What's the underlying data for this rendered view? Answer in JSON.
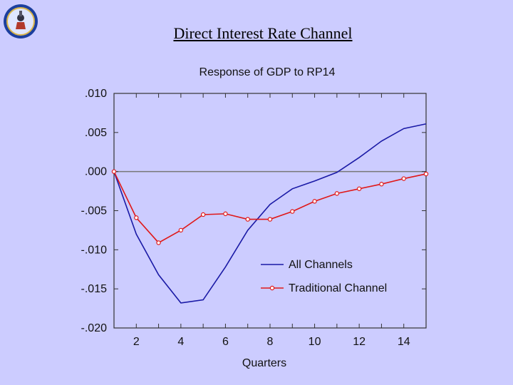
{
  "slide": {
    "title": "Direct Interest Rate Channel",
    "logo_icon": "institution-seal-icon"
  },
  "chart_data": {
    "type": "line",
    "title": "Response of GDP to RP14",
    "xlabel": "Quarters",
    "ylabel": "",
    "x": [
      1,
      2,
      3,
      4,
      5,
      6,
      7,
      8,
      9,
      10,
      11,
      12,
      13,
      14,
      15
    ],
    "xlim": [
      1,
      15
    ],
    "ylim": [
      -0.02,
      0.01
    ],
    "x_ticks": [
      2,
      4,
      6,
      8,
      10,
      12,
      14
    ],
    "x_tick_labels": [
      "2",
      "4",
      "6",
      "8",
      "10",
      "12",
      "14"
    ],
    "y_ticks": [
      0.01,
      0.005,
      0.0,
      -0.005,
      -0.01,
      -0.015,
      -0.02
    ],
    "y_tick_labels": [
      ".010",
      ".005",
      ".000",
      "-.005",
      "-.010",
      "-.015",
      "-.020"
    ],
    "zero_line": true,
    "grid": false,
    "legend_position": "lower-right",
    "series": [
      {
        "name": "All Channels",
        "color": "#1a1aa6",
        "marker": "none",
        "values": [
          0.0,
          -0.008,
          -0.0132,
          -0.0168,
          -0.0164,
          -0.0122,
          -0.0075,
          -0.0042,
          -0.0022,
          -0.0012,
          -0.0001,
          0.0018,
          0.0039,
          0.0055,
          0.0061
        ]
      },
      {
        "name": "Traditional Channel",
        "color": "#e01818",
        "marker": "circle",
        "values": [
          0.0,
          -0.0059,
          -0.0091,
          -0.0075,
          -0.0055,
          -0.0054,
          -0.0061,
          -0.0061,
          -0.0051,
          -0.0038,
          -0.0028,
          -0.0022,
          -0.0016,
          -0.0009,
          -0.0003
        ]
      }
    ]
  }
}
